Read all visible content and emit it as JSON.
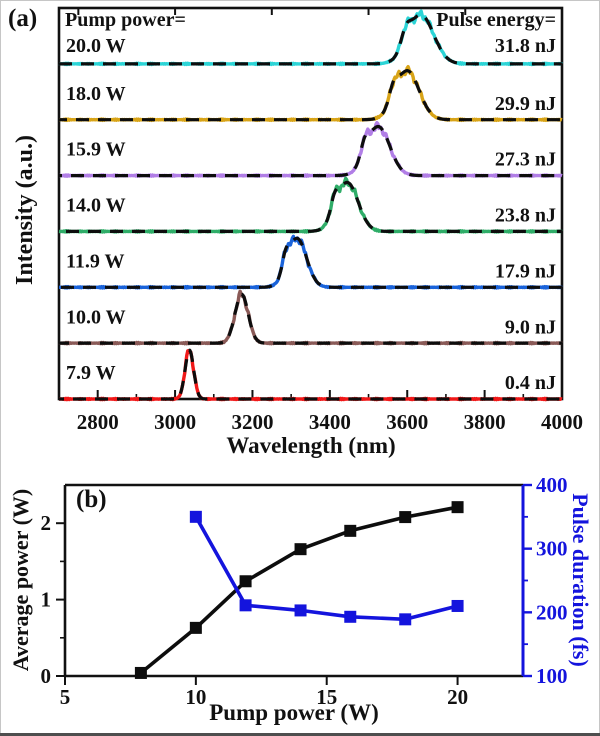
{
  "chart_data": [
    {
      "id": "spectra-panel",
      "type": "line",
      "panel_label": "(a)",
      "title_left": "Pump power=",
      "title_right": "Pulse energy=",
      "xlabel": "Wavelength (nm)",
      "ylabel": "Intensity (a.u.)",
      "x_range": [
        2700,
        4000
      ],
      "x_major_ticks": [
        2800,
        3000,
        3200,
        3400,
        3600,
        3800,
        4000
      ],
      "x_minor_ticks": [
        2900,
        3100,
        3300,
        3500,
        3700,
        3900
      ],
      "top_axis_ticks": [
        2750,
        3000,
        3250,
        3500,
        3750
      ],
      "fit_curve_style": "black dashed Gaussian fit over colored measured trace",
      "spectra": [
        {
          "pump_power": "20.0 W",
          "pulse_energy": "31.8 nJ",
          "color": "#2cd4d6",
          "peak_nm": 3635,
          "fwhm_nm": 78,
          "shoulder": true
        },
        {
          "pump_power": "18.0 W",
          "pulse_energy": "29.9 nJ",
          "color": "#d8a418",
          "peak_nm": 3600,
          "fwhm_nm": 72,
          "shoulder": true
        },
        {
          "pump_power": "15.9 W",
          "pulse_energy": "27.3 nJ",
          "color": "#b17ee6",
          "peak_nm": 3525,
          "fwhm_nm": 70,
          "shoulder": true
        },
        {
          "pump_power": "14.0 W",
          "pulse_energy": "23.8 nJ",
          "color": "#2fad68",
          "peak_nm": 3445,
          "fwhm_nm": 66,
          "shoulder": true
        },
        {
          "pump_power": "11.9 W",
          "pulse_energy": "17.9 nJ",
          "color": "#1a63da",
          "peak_nm": 3315,
          "fwhm_nm": 58,
          "shoulder": true
        },
        {
          "pump_power": "10.0 W",
          "pulse_energy": "9.0 nJ",
          "color": "#8a5a57",
          "peak_nm": 3172,
          "fwhm_nm": 40,
          "shoulder": false
        },
        {
          "pump_power": "7.9 W",
          "pulse_energy": "0.4 nJ",
          "color": "#f01818",
          "peak_nm": 3037,
          "fwhm_nm": 26,
          "shoulder": false
        }
      ]
    },
    {
      "id": "power-duration-panel",
      "type": "line",
      "panel_label": "(b)",
      "xlabel": "Pump power (W)",
      "ylabel_left": "Average power (W)",
      "ylabel_right": "Pulse duration (fs)",
      "x_range": [
        5,
        22.5
      ],
      "x_major_ticks": [
        5,
        10,
        15,
        20
      ],
      "y_left_range": [
        0,
        2.5
      ],
      "y_left_major_ticks": [
        0,
        1,
        2
      ],
      "y_left_minor_ticks": [
        0.5,
        1.5
      ],
      "y_right_range": [
        100,
        400
      ],
      "y_right_major_ticks": [
        100,
        200,
        300,
        400
      ],
      "y_right_minor_ticks": [
        150,
        250,
        350
      ],
      "right_axis_color": "#1414dd",
      "series": [
        {
          "name": "Average power",
          "axis": "left",
          "color": "#0d0d0d",
          "marker": "square",
          "x": [
            7.9,
            10.0,
            11.9,
            14.0,
            15.9,
            18.0,
            20.0
          ],
          "y": [
            0.04,
            0.63,
            1.24,
            1.66,
            1.9,
            2.08,
            2.21
          ]
        },
        {
          "name": "Pulse duration",
          "axis": "right",
          "color": "#1414dd",
          "marker": "square",
          "x": [
            10.0,
            11.9,
            14.0,
            15.9,
            18.0,
            20.0
          ],
          "y": [
            350,
            211,
            203,
            193,
            189,
            210
          ]
        }
      ]
    }
  ]
}
